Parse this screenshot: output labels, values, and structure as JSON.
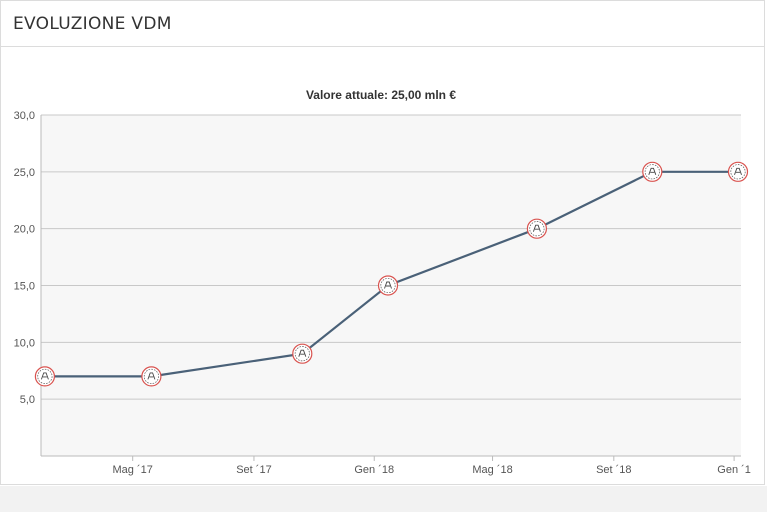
{
  "header": {
    "title": "EVOLUZIONE VDM"
  },
  "colors": {
    "line": "#4a6178",
    "plot_background": "#f7f7f7",
    "grid": "#c8c8c8",
    "marker_ring": "#d9534f"
  },
  "chart_data": {
    "type": "line",
    "title": "Valore attuale: 25,00 mln €",
    "xlabel": "",
    "ylabel": "",
    "grid": true,
    "legend": "none",
    "marker_icon": "club-crest-icon",
    "ylim": [
      0,
      30
    ],
    "xlim": [
      "2017-01-28",
      "2019-01-08"
    ],
    "y_ticks": [
      {
        "value": 5,
        "label": "5,0"
      },
      {
        "value": 10,
        "label": "10,0"
      },
      {
        "value": 15,
        "label": "15,0"
      },
      {
        "value": 20,
        "label": "20,0"
      },
      {
        "value": 25,
        "label": "25,0"
      },
      {
        "value": 30,
        "label": "30,0"
      }
    ],
    "x_ticks": [
      {
        "date": "2017-05-01",
        "label": "Mag ´17"
      },
      {
        "date": "2017-09-01",
        "label": "Set ´17"
      },
      {
        "date": "2018-01-01",
        "label": "Gen ´18"
      },
      {
        "date": "2018-05-01",
        "label": "Mag ´18"
      },
      {
        "date": "2018-09-01",
        "label": "Set ´18"
      },
      {
        "date": "2019-01-01",
        "label": "Gen ´1"
      }
    ],
    "series": [
      {
        "points": [
          {
            "x": "2017-02-01",
            "y": 7.0
          },
          {
            "x": "2017-05-20",
            "y": 7.0
          },
          {
            "x": "2017-10-20",
            "y": 9.0
          },
          {
            "x": "2018-01-15",
            "y": 15.0
          },
          {
            "x": "2018-06-15",
            "y": 20.0
          },
          {
            "x": "2018-10-10",
            "y": 25.0
          },
          {
            "x": "2019-01-05",
            "y": 25.0
          }
        ]
      }
    ]
  }
}
